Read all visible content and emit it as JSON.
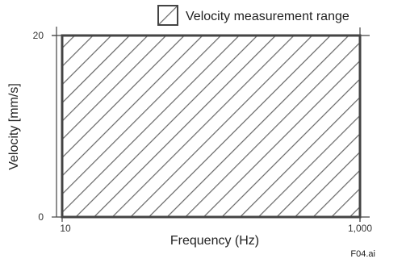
{
  "chart_data": {
    "type": "area",
    "xlabel": "Frequency (Hz)",
    "ylabel": "Velocity [mm/s]",
    "x_scale": "log",
    "xlim": [
      10,
      1000
    ],
    "ylim": [
      0,
      20
    ],
    "x_ticks": [
      {
        "value": 10,
        "label": "10"
      },
      {
        "value": 1000,
        "label": "1,000"
      }
    ],
    "y_ticks": [
      {
        "value": 0,
        "label": "0"
      },
      {
        "value": 20,
        "label": "20"
      }
    ],
    "series": [
      {
        "name": "Velocity measurement range",
        "fill": "diagonal-hatch",
        "region": {
          "x": [
            10,
            1000
          ],
          "y": [
            0,
            20
          ]
        }
      }
    ],
    "legend": {
      "position": "top-right",
      "label": "Velocity measurement range"
    },
    "grid": false,
    "annotation": "F04.ai",
    "colors": {
      "axis": "#444444",
      "hatch": "#666666",
      "text": "#222222"
    }
  }
}
